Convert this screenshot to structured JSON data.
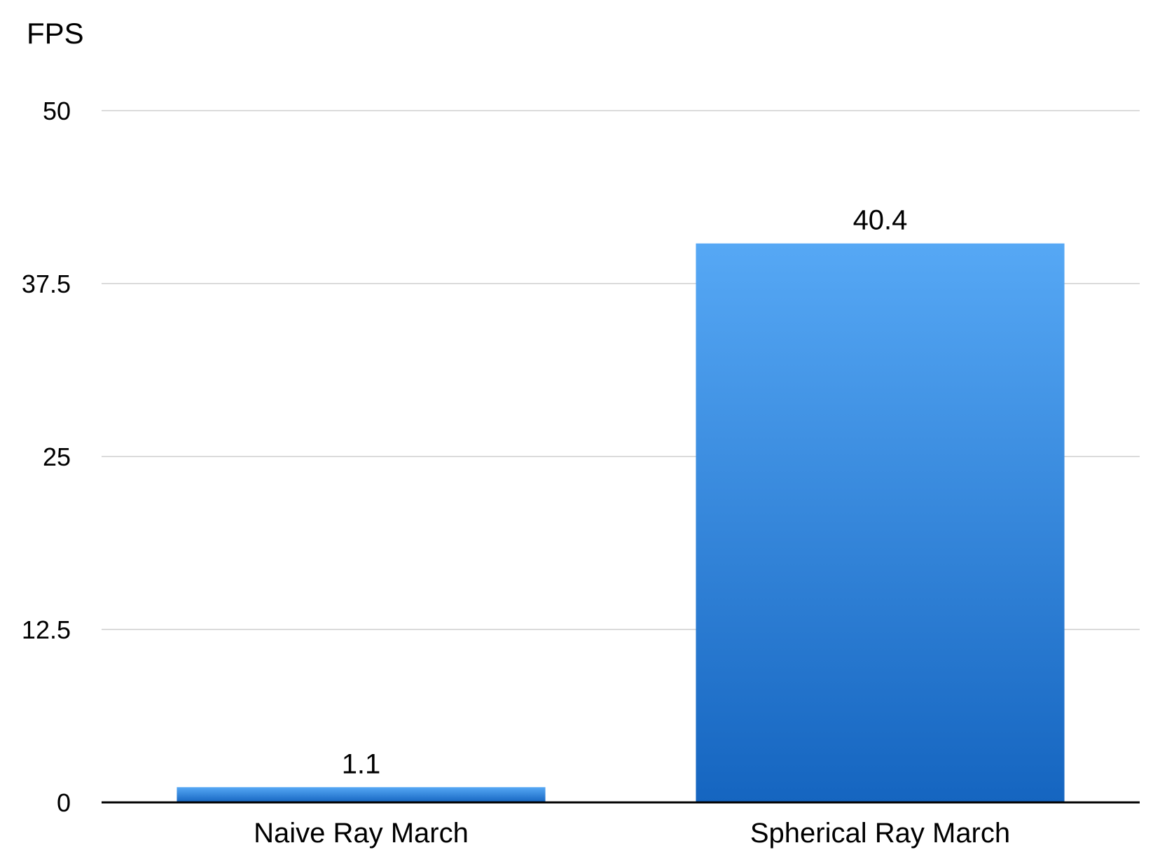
{
  "chart_data": {
    "type": "bar",
    "title": "",
    "xlabel": "",
    "ylabel": "FPS",
    "categories": [
      "Naive Ray March",
      "Spherical Ray March"
    ],
    "values": [
      1.1,
      40.4
    ],
    "value_labels": [
      "1.1",
      "40.4"
    ],
    "ylim": [
      0,
      50
    ],
    "yticks": [
      0,
      12.5,
      25,
      37.5,
      50
    ],
    "ytick_labels": [
      "0",
      "12.5",
      "25",
      "37.5",
      "50"
    ],
    "grid": true,
    "legend": "none",
    "bar_color_top": "#56a8f5",
    "bar_color_bottom": "#1565c0"
  }
}
